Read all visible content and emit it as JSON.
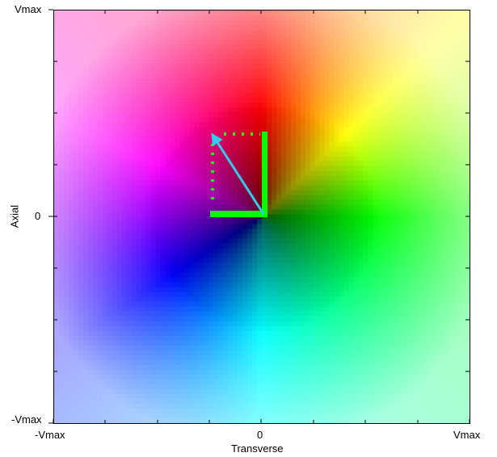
{
  "x_axis": {
    "title": "Transverse",
    "ticks": [
      "-Vmax",
      "0",
      "Vmax"
    ]
  },
  "y_axis": {
    "title": "Axial",
    "ticks": [
      "Vmax",
      "0",
      "-Vmax"
    ]
  },
  "legend_vectors": {
    "component_color": "#00ff00",
    "resultant_color": "#33ccee",
    "resultant": {
      "transverse": -0.25,
      "axial": 0.4
    }
  },
  "colormap": {
    "up": "#ff0000",
    "right": "#00ff00",
    "down": "#00ffff",
    "left": "#8000ff",
    "upper_right_corner": "#ffff66",
    "upper_left_corner": "#ff99ff",
    "lower_left_corner": "#9999ff",
    "lower_right_corner": "#99ff99",
    "center": "#000000"
  }
}
